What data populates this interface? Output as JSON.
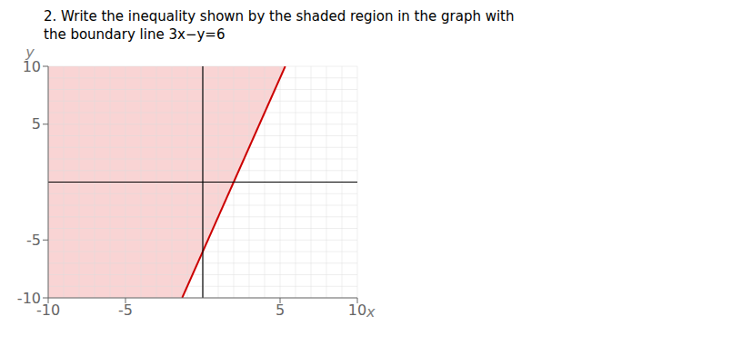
{
  "chart_data": {
    "type": "line",
    "title": "2. Write the inequality shown by the shaded region in the graph with",
    "subtitle": "the boundary line 3x−y=6",
    "xlabel": "x",
    "ylabel": "y",
    "xlim": [
      -10,
      10
    ],
    "ylim": [
      -10,
      10
    ],
    "xticks": [
      -10,
      -5,
      5,
      10
    ],
    "yticks": [
      -10,
      -5,
      5,
      10
    ],
    "grid": true,
    "series": [
      {
        "type": "area",
        "color": "#f5b8b8",
        "x": [
          -10,
          -1.3333333333333333,
          5.333333333333333
        ],
        "low": [
          -10,
          -10,
          10
        ],
        "values": [
          10,
          10,
          10
        ]
      },
      {
        "type": "line",
        "color": "#cc0000",
        "x": [
          -1.3333333333333333,
          5.333333333333333
        ],
        "values": [
          -10,
          10
        ]
      }
    ]
  }
}
